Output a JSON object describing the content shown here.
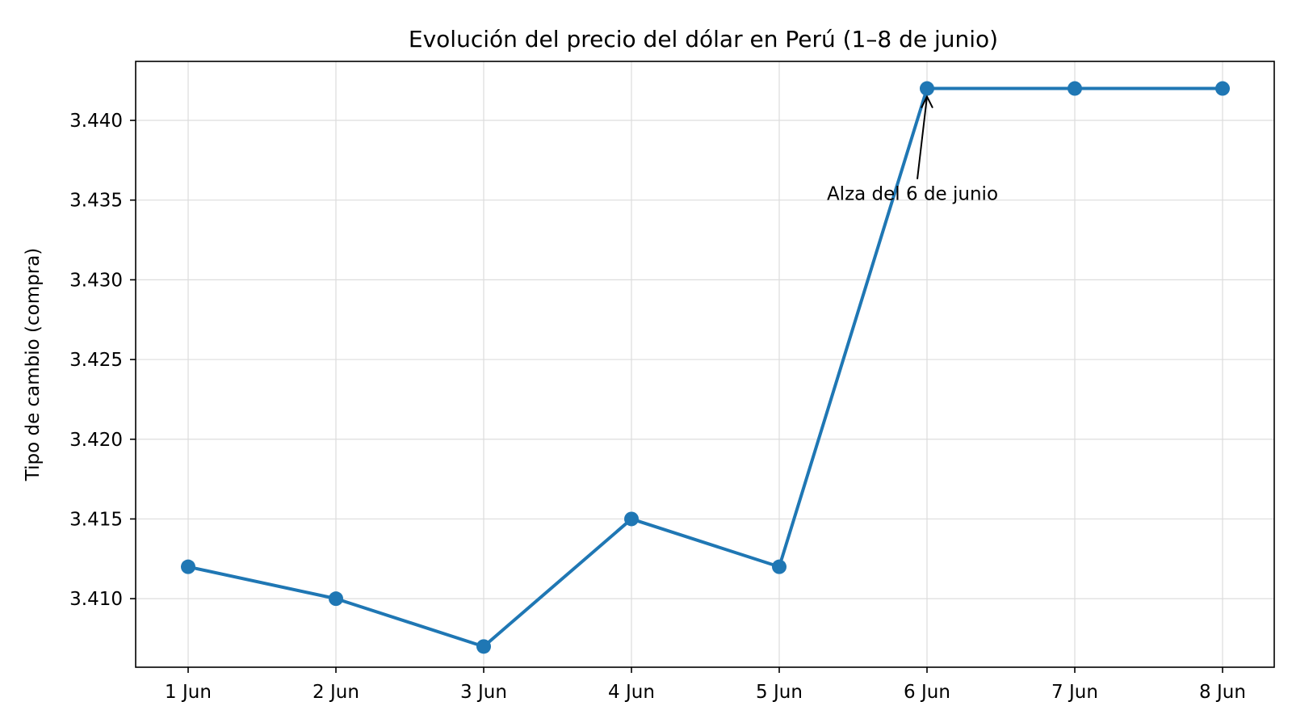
{
  "chart_data": {
    "type": "line",
    "title": "Evolución del precio del dólar en Perú (1–8 de junio)",
    "xlabel": "",
    "ylabel": "Tipo de cambio (compra)",
    "categories": [
      "1 Jun",
      "2 Jun",
      "3 Jun",
      "4 Jun",
      "5 Jun",
      "6 Jun",
      "7 Jun",
      "8 Jun"
    ],
    "series": [
      {
        "values": [
          3.412,
          3.41,
          3.407,
          3.415,
          3.412,
          3.442,
          3.442,
          3.442
        ],
        "color": "#1f77b4"
      }
    ],
    "ylim": [
      3.4057,
      3.4437
    ],
    "yticks": [
      3.41,
      3.415,
      3.42,
      3.425,
      3.43,
      3.435,
      3.44
    ],
    "ytick_labels": [
      "3.410",
      "3.415",
      "3.420",
      "3.425",
      "3.430",
      "3.435",
      "3.440"
    ],
    "grid": true,
    "annotation": {
      "text": "Alza del 6 de junio",
      "target_category": "6 Jun",
      "target_value": 3.442,
      "text_value": 3.435
    }
  }
}
